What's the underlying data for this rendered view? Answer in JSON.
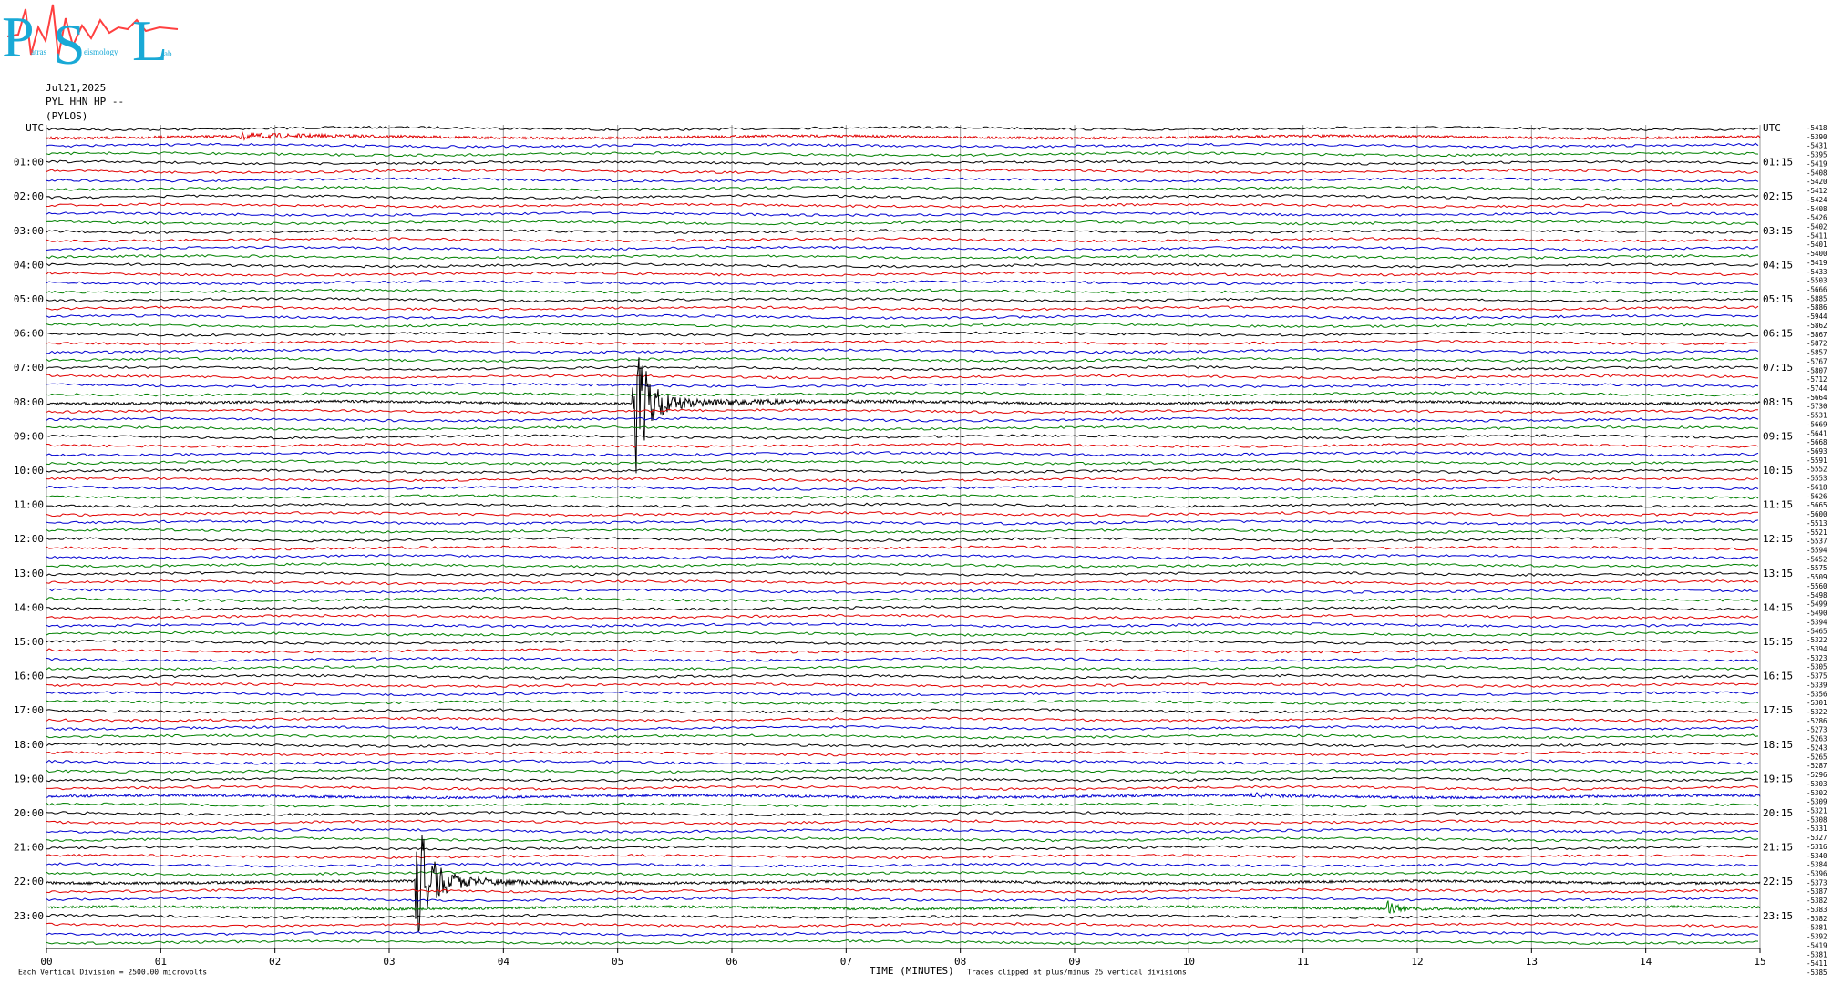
{
  "logo": {
    "letters": [
      "P",
      "S",
      "L"
    ],
    "words": [
      "atras",
      "eismology",
      "ab"
    ]
  },
  "header": {
    "date": "Jul21,2025",
    "station": "PYL HHN HP --",
    "location": "(PYLOS)"
  },
  "left_labels": [
    "UTC",
    "01:00",
    "02:00",
    "03:00",
    "04:00",
    "05:00",
    "06:00",
    "07:00",
    "08:00",
    "09:00",
    "10:00",
    "11:00",
    "12:00",
    "13:00",
    "14:00",
    "15:00",
    "16:00",
    "17:00",
    "18:00",
    "19:00",
    "20:00",
    "21:00",
    "22:00",
    "23:00"
  ],
  "right_labels": [
    "UTC",
    "01:15",
    "02:15",
    "03:15",
    "04:15",
    "05:15",
    "06:15",
    "07:15",
    "08:15",
    "09:15",
    "10:15",
    "11:15",
    "12:15",
    "13:15",
    "14:15",
    "15:15",
    "16:15",
    "17:15",
    "18:15",
    "19:15",
    "20:15",
    "21:15",
    "22:15",
    "23:15"
  ],
  "offset_labels": [
    "-5418",
    "-5390",
    "-5431",
    "-5395",
    "-5419",
    "-5408",
    "-5420",
    "-5412",
    "-5424",
    "-5408",
    "-5426",
    "-5402",
    "-5411",
    "-5401",
    "-5400",
    "-5419",
    "-5433",
    "-5503",
    "-5666",
    "-5885",
    "-5886",
    "-5944",
    "-5862",
    "-5867",
    "-5872",
    "-5857",
    "-5767",
    "-5807",
    "-5712",
    "-5744",
    "-5664",
    "-5730",
    "-5531",
    "-5669",
    "-5641",
    "-5668",
    "-5693",
    "-5591",
    "-5552",
    "-5553",
    "-5618",
    "-5626",
    "-5665",
    "-5600",
    "-5513",
    "-5521",
    "-5537",
    "-5594",
    "-5652",
    "-5575",
    "-5509",
    "-5560",
    "-5498",
    "-5499",
    "-5490",
    "-5394",
    "-5465",
    "-5322",
    "-5394",
    "-5323",
    "-5305",
    "-5375",
    "-5339",
    "-5356",
    "-5301",
    "-5322",
    "-5286",
    "-5273",
    "-5263",
    "-5243",
    "-5265",
    "-5287",
    "-5296",
    "-5303",
    "-5302",
    "-5309",
    "-5321",
    "-5308",
    "-5331",
    "-5327",
    "-5316",
    "-5340",
    "-5384",
    "-5396",
    "-5373",
    "-5387",
    "-5382",
    "-5383",
    "-5382",
    "-5381",
    "-5392",
    "-5419",
    "-5381",
    "-5411",
    "-5385"
  ],
  "x_ticks": [
    "00",
    "01",
    "02",
    "03",
    "04",
    "05",
    "06",
    "07",
    "08",
    "09",
    "10",
    "11",
    "12",
    "13",
    "14",
    "15"
  ],
  "footer": {
    "scale": "Each Vertical Division = 2500.00 microvolts",
    "axis_title": "TIME (MINUTES)",
    "clip_note": "Traces clipped at plus/minus 25 vertical divisions"
  }
}
